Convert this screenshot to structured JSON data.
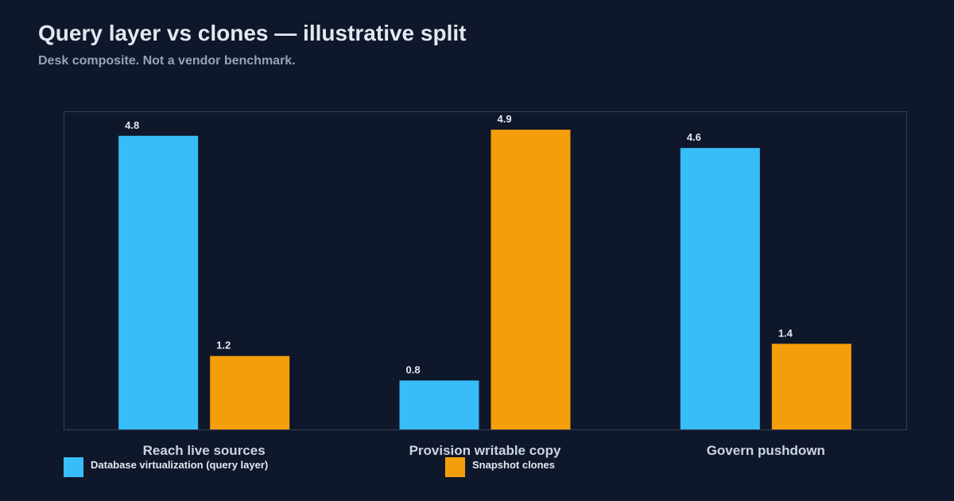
{
  "header": {
    "title": "Query layer vs clones — illustrative split",
    "subtitle": "Desk composite. Not a vendor benchmark."
  },
  "colors": {
    "background": "#0f172a",
    "plot_border": "#334155",
    "series_virtualization": "#38bdf8",
    "series_clones": "#f59e0b",
    "text": "#e2e8f0",
    "muted_text": "#94a3b8"
  },
  "chart_data": {
    "type": "bar",
    "categories": [
      "Reach live sources",
      "Provision writable copy",
      "Govern pushdown"
    ],
    "series": [
      {
        "name": "Database virtualization (query layer)",
        "values": [
          4.8,
          0.8,
          4.6
        ],
        "color": "#38bdf8"
      },
      {
        "name": "Snapshot clones",
        "values": [
          1.2,
          4.9,
          1.4
        ],
        "color": "#f59e0b"
      }
    ],
    "ylim": [
      0,
      5.2
    ],
    "grid": false,
    "legend_position": "bottom",
    "data_labels": true
  }
}
